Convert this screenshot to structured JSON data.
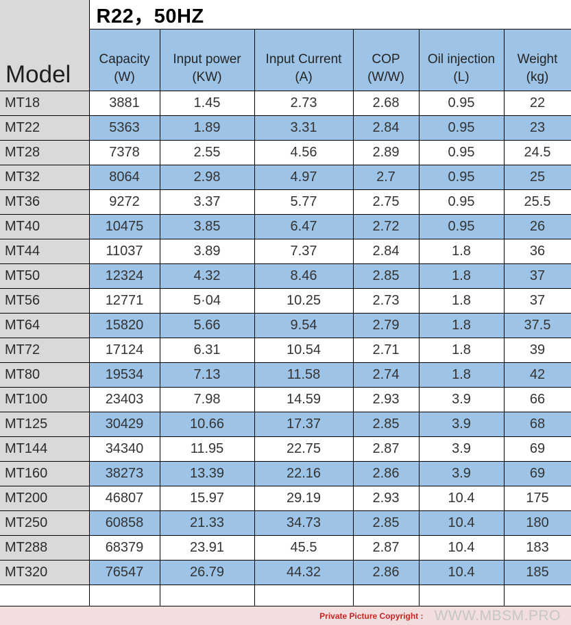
{
  "table": {
    "title": "R22，50HZ",
    "model_header": "Model",
    "columns": [
      {
        "key": "capacity",
        "label": "Capacity",
        "unit": "(W)"
      },
      {
        "key": "input-power",
        "label": "Input power",
        "unit": "(KW)"
      },
      {
        "key": "input-current",
        "label": "Input Current",
        "unit": "(A)"
      },
      {
        "key": "cop",
        "label": "COP",
        "unit": "(W/W)"
      },
      {
        "key": "oil-injection",
        "label": "Oil injection",
        "unit": "(L)"
      },
      {
        "key": "weight",
        "label": "Weight",
        "unit": "(kg)"
      }
    ],
    "rows": [
      {
        "model": "MT18",
        "values": [
          "3881",
          "1.45",
          "2.73",
          "2.68",
          "0.95",
          "22"
        ]
      },
      {
        "model": "MT22",
        "values": [
          "5363",
          "1.89",
          "3.31",
          "2.84",
          "0.95",
          "23"
        ]
      },
      {
        "model": "MT28",
        "values": [
          "7378",
          "2.55",
          "4.56",
          "2.89",
          "0.95",
          "24.5"
        ]
      },
      {
        "model": "MT32",
        "values": [
          "8064",
          "2.98",
          "4.97",
          "2.7",
          "0.95",
          "25"
        ]
      },
      {
        "model": "MT36",
        "values": [
          "9272",
          "3.37",
          "5.77",
          "2.75",
          "0.95",
          "25.5"
        ]
      },
      {
        "model": "MT40",
        "values": [
          "10475",
          "3.85",
          "6.47",
          "2.72",
          "0.95",
          "26"
        ]
      },
      {
        "model": "MT44",
        "values": [
          "11037",
          "3.89",
          "7.37",
          "2.84",
          "1.8",
          "36"
        ]
      },
      {
        "model": "MT50",
        "values": [
          "12324",
          "4.32",
          "8.46",
          "2.85",
          "1.8",
          "37"
        ]
      },
      {
        "model": "MT56",
        "values": [
          "12771",
          "5·04",
          "10.25",
          "2.73",
          "1.8",
          "37"
        ]
      },
      {
        "model": "MT64",
        "values": [
          "15820",
          "5.66",
          "9.54",
          "2.79",
          "1.8",
          "37.5"
        ]
      },
      {
        "model": "MT72",
        "values": [
          "17124",
          "6.31",
          "10.54",
          "2.71",
          "1.8",
          "39"
        ]
      },
      {
        "model": "MT80",
        "values": [
          "19534",
          "7.13",
          "11.58",
          "2.74",
          "1.8",
          "42"
        ]
      },
      {
        "model": "MT100",
        "values": [
          "23403",
          "7.98",
          "14.59",
          "2.93",
          "3.9",
          "66"
        ]
      },
      {
        "model": "MT125",
        "values": [
          "30429",
          "10.66",
          "17.37",
          "2.85",
          "3.9",
          "68"
        ]
      },
      {
        "model": "MT144",
        "values": [
          "34340",
          "11.95",
          "22.75",
          "2.87",
          "3.9",
          "69"
        ]
      },
      {
        "model": "MT160",
        "values": [
          "38273",
          "13.39",
          "22.16",
          "2.86",
          "3.9",
          "69"
        ]
      },
      {
        "model": "MT200",
        "values": [
          "46807",
          "15.97",
          "29.19",
          "2.93",
          "10.4",
          "175"
        ]
      },
      {
        "model": "MT250",
        "values": [
          "60858",
          "21.33",
          "34.73",
          "2.85",
          "10.4",
          "180"
        ]
      },
      {
        "model": "MT288",
        "values": [
          "68379",
          "23.91",
          "45.5",
          "2.87",
          "10.4",
          "183"
        ]
      },
      {
        "model": "MT320",
        "values": [
          "76547",
          "26.79",
          "44.32",
          "2.86",
          "10.4",
          "185"
        ]
      }
    ]
  },
  "footer": {
    "copyright_label": "Private Picture Copyright :",
    "site": "WWW.MBSM.PRO"
  },
  "colors": {
    "row_alt": "#9dc3e6",
    "header_fill": "#9dc3e6",
    "model_fill": "#d9d9d9",
    "footer_fill": "#f2dede",
    "copyright_red": "#cc2222",
    "site_gray": "#c6c6c6"
  }
}
